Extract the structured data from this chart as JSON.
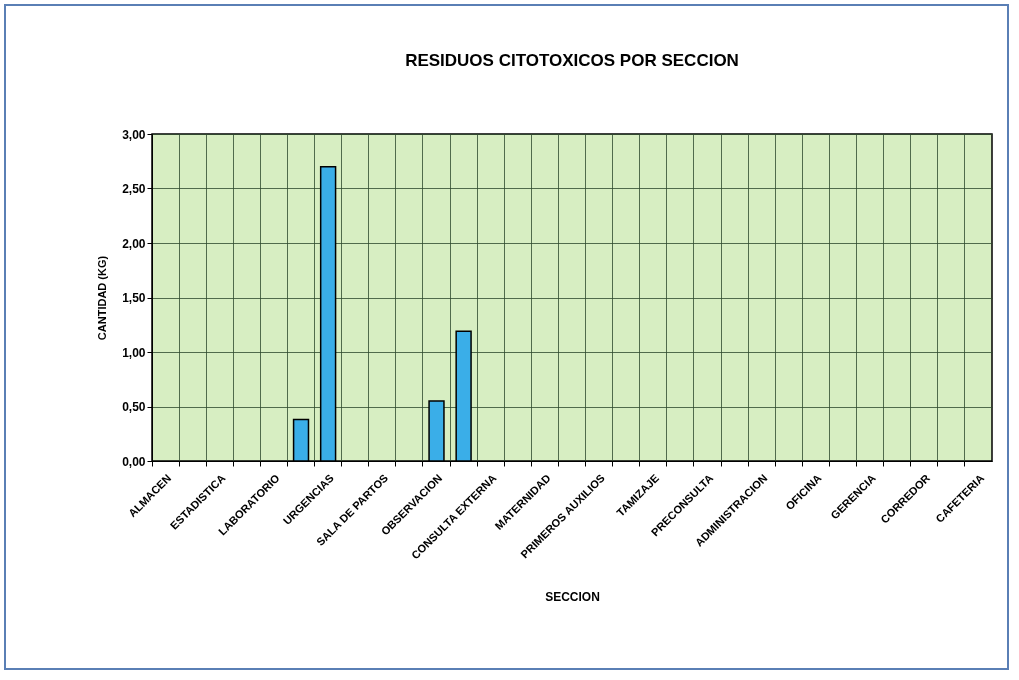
{
  "chart_data": {
    "type": "bar",
    "title": "RESIDUOS CITOTOXICOS POR SECCION",
    "xlabel": "SECCION",
    "ylabel": "CANTIDAD (KG)",
    "categories": [
      "ALMACEN",
      null,
      "ESTADISTICA",
      null,
      "LABORATORIO",
      null,
      "URGENCIAS",
      null,
      "SALA DE PARTOS",
      null,
      "OBSERVACION",
      null,
      "CONSULTA EXTERNA",
      null,
      "MATERNIDAD",
      null,
      "PRIMEROS AUXILIOS",
      null,
      "TAMIZAJE",
      null,
      "PRECONSULTA",
      null,
      "ADMINISTRACION",
      null,
      "OFICINA",
      null,
      "GERENCIA",
      null,
      "CORREDOR",
      null,
      "CAFETERIA"
    ],
    "values": [
      null,
      null,
      null,
      null,
      null,
      0.38,
      2.7,
      null,
      null,
      null,
      0.55,
      1.19,
      null,
      null,
      null,
      null,
      null,
      null,
      null,
      null,
      null,
      null,
      null,
      null,
      null,
      null,
      null,
      null,
      null,
      null,
      null
    ],
    "color": "#3aaee8",
    "ylim": [
      0,
      3
    ],
    "yticks": [
      {
        "value": 0,
        "label": "0,00"
      },
      {
        "value": 0.5,
        "label": "0,50"
      },
      {
        "value": 1,
        "label": "1,00"
      },
      {
        "value": 1.5,
        "label": "1,50"
      },
      {
        "value": 2,
        "label": "2,00"
      },
      {
        "value": 2.5,
        "label": "2,50"
      },
      {
        "value": 3,
        "label": "3,00"
      }
    ],
    "grid": true
  }
}
